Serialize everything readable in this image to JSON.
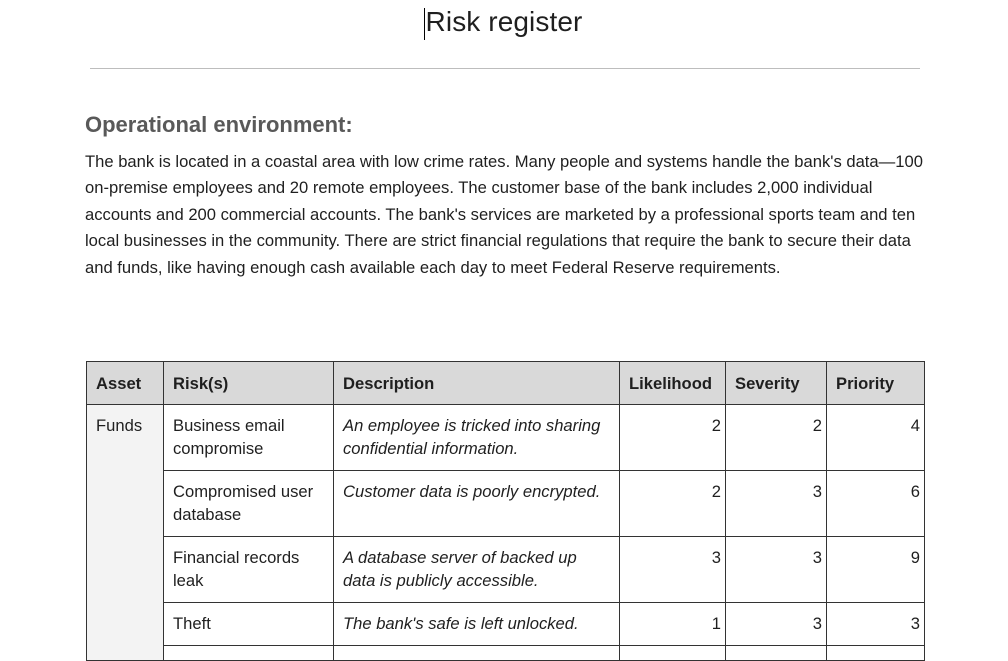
{
  "document": {
    "title": "Risk register"
  },
  "section": {
    "heading": "Operational environment:",
    "paragraph": "The bank is located in a coastal area with low crime rates. Many people and systems handle the bank's data—100 on-premise employees and 20 remote employees. The customer base of the bank includes 2,000 individual accounts and 200 commercial accounts. The bank's services are marketed by a professional sports team and ten local businesses in the community. There are strict financial regulations that require the bank to secure their data and funds, like having enough cash available each day to meet Federal Reserve requirements."
  },
  "table": {
    "headers": {
      "asset": "Asset",
      "risks": "Risk(s)",
      "description": "Description",
      "likelihood": "Likelihood",
      "severity": "Severity",
      "priority": "Priority"
    },
    "asset": "Funds",
    "rows": [
      {
        "risk": "Business email compromise",
        "description": "An employee is tricked into sharing confidential information.",
        "likelihood": "2",
        "severity": "2",
        "priority": "4"
      },
      {
        "risk": "Compromised user database",
        "description": "Customer data is poorly encrypted.",
        "likelihood": "2",
        "severity": "3",
        "priority": "6"
      },
      {
        "risk": "Financial records leak",
        "description": "A database server of backed up data is publicly accessible.",
        "likelihood": "3",
        "severity": "3",
        "priority": "9"
      },
      {
        "risk": "Theft",
        "description": "The bank's safe is left unlocked.",
        "likelihood": "1",
        "severity": "3",
        "priority": "3"
      }
    ]
  }
}
